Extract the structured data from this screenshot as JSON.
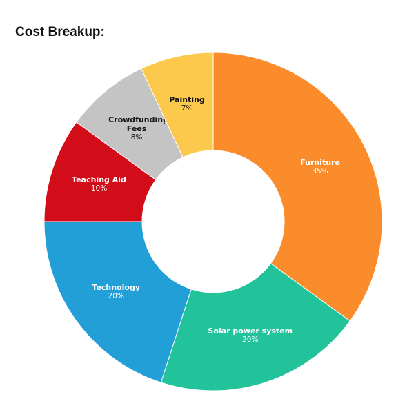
{
  "chart_data": {
    "type": "donut",
    "title": "Cost Breakup:",
    "categories": [
      "Furniture",
      "Solar power system",
      "Technology",
      "Teaching Aid",
      "Crowdfunding Fees",
      "Painting"
    ],
    "values": [
      35,
      20,
      20,
      10,
      8,
      7
    ],
    "value_labels": [
      "35%",
      "20%",
      "20%",
      "10%",
      "8%",
      "7%"
    ],
    "colors": [
      "#fb8c2b",
      "#22c29b",
      "#219fd6",
      "#d30c1a",
      "#c4c4c4",
      "#fdc94c"
    ],
    "label_colors": [
      "#ffffff",
      "#ffffff",
      "#ffffff",
      "#ffffff",
      "#111111",
      "#111111"
    ]
  }
}
